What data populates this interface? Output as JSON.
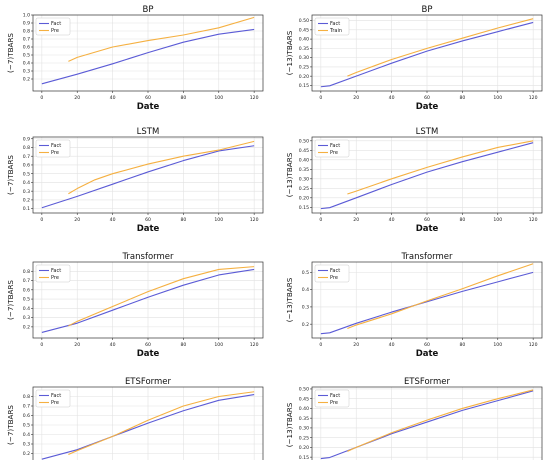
{
  "colors": {
    "fact": "#5b5bd6",
    "pre": "#f5b041",
    "grid": "#e2e2e2",
    "axis": "#333333"
  },
  "chart_data": [
    {
      "type": "line",
      "title": "BP",
      "xlabel": "Date",
      "ylabel": "(~7)TBARS",
      "xlim": [
        -5,
        125
      ],
      "ylim": [
        0.05,
        1.0
      ],
      "xticks": [
        0,
        20,
        40,
        60,
        80,
        100,
        120
      ],
      "yticks": [
        0.2,
        0.3,
        0.4,
        0.5,
        0.6,
        0.7,
        0.8,
        0.9,
        1.0
      ],
      "ytick_labels": [
        "0.2",
        "0.3",
        "0.4",
        "0.5",
        "0.6",
        "0.7",
        "0.8",
        "0.9",
        "1.0"
      ],
      "grid": true,
      "legend": "top-left",
      "series": [
        {
          "name": "Fact",
          "color_key": "fact",
          "x": [
            0,
            20,
            40,
            60,
            80,
            100,
            120
          ],
          "y": [
            0.14,
            0.26,
            0.39,
            0.53,
            0.66,
            0.76,
            0.82
          ]
        },
        {
          "name": "Pre",
          "color_key": "pre",
          "x": [
            15,
            20,
            40,
            60,
            80,
            100,
            120
          ],
          "y": [
            0.42,
            0.47,
            0.6,
            0.68,
            0.75,
            0.84,
            0.97
          ]
        }
      ]
    },
    {
      "type": "line",
      "title": "BP",
      "xlabel": "Date",
      "ylabel": "(~13)TBARS",
      "xlim": [
        -5,
        125
      ],
      "ylim": [
        0.12,
        0.53
      ],
      "xticks": [
        0,
        20,
        40,
        60,
        80,
        100,
        120
      ],
      "yticks": [
        0.15,
        0.2,
        0.25,
        0.3,
        0.35,
        0.4,
        0.45,
        0.5
      ],
      "ytick_labels": [
        "0.15",
        "0.20",
        "0.25",
        "0.30",
        "0.35",
        "0.40",
        "0.45",
        "0.50"
      ],
      "grid": true,
      "legend": "top-left",
      "series": [
        {
          "name": "Fact",
          "color_key": "fact",
          "x": [
            0,
            5,
            20,
            40,
            60,
            80,
            100,
            120
          ],
          "y": [
            0.143,
            0.148,
            0.2,
            0.27,
            0.335,
            0.39,
            0.44,
            0.49
          ]
        },
        {
          "name": "Train",
          "color_key": "pre",
          "x": [
            15,
            20,
            40,
            60,
            80,
            100,
            120
          ],
          "y": [
            0.2,
            0.22,
            0.29,
            0.35,
            0.405,
            0.46,
            0.51
          ]
        }
      ]
    },
    {
      "type": "line",
      "title": "LSTM",
      "xlabel": "Date",
      "ylabel": "(~7)TBARS",
      "xlim": [
        -5,
        125
      ],
      "ylim": [
        0.05,
        0.92
      ],
      "xticks": [
        0,
        20,
        40,
        60,
        80,
        100,
        120
      ],
      "yticks": [
        0.1,
        0.2,
        0.3,
        0.4,
        0.5,
        0.6,
        0.7,
        0.8,
        0.9
      ],
      "ytick_labels": [
        "0.1",
        "0.2",
        "0.3",
        "0.4",
        "0.5",
        "0.6",
        "0.7",
        "0.8",
        "0.9"
      ],
      "grid": true,
      "legend": "top-left",
      "series": [
        {
          "name": "Fact",
          "color_key": "fact",
          "x": [
            0,
            20,
            40,
            60,
            80,
            100,
            120
          ],
          "y": [
            0.11,
            0.24,
            0.38,
            0.52,
            0.65,
            0.76,
            0.82
          ]
        },
        {
          "name": "Pre",
          "color_key": "pre",
          "x": [
            15,
            20,
            30,
            40,
            60,
            80,
            100,
            120
          ],
          "y": [
            0.27,
            0.33,
            0.43,
            0.5,
            0.61,
            0.7,
            0.77,
            0.87
          ]
        }
      ]
    },
    {
      "type": "line",
      "title": "LSTM",
      "xlabel": "Date",
      "ylabel": "(~13)TBARS",
      "xlim": [
        -5,
        125
      ],
      "ylim": [
        0.12,
        0.52
      ],
      "xticks": [
        0,
        20,
        40,
        60,
        80,
        100,
        120
      ],
      "yticks": [
        0.15,
        0.2,
        0.25,
        0.3,
        0.35,
        0.4,
        0.45,
        0.5
      ],
      "ytick_labels": [
        "0.15",
        "0.20",
        "0.25",
        "0.30",
        "0.35",
        "0.40",
        "0.45",
        "0.50"
      ],
      "grid": true,
      "legend": "top-left",
      "series": [
        {
          "name": "Fact",
          "color_key": "fact",
          "x": [
            0,
            5,
            20,
            40,
            60,
            80,
            100,
            120
          ],
          "y": [
            0.143,
            0.148,
            0.2,
            0.27,
            0.335,
            0.39,
            0.44,
            0.49
          ]
        },
        {
          "name": "Pre",
          "color_key": "pre",
          "x": [
            15,
            20,
            40,
            60,
            80,
            100,
            120
          ],
          "y": [
            0.22,
            0.235,
            0.3,
            0.36,
            0.415,
            0.465,
            0.5
          ]
        }
      ]
    },
    {
      "type": "line",
      "title": "Transformer",
      "xlabel": "Date",
      "ylabel": "(~7)TBARS",
      "xlim": [
        -5,
        125
      ],
      "ylim": [
        0.08,
        0.9
      ],
      "xticks": [
        0,
        20,
        40,
        60,
        80,
        100,
        120
      ],
      "yticks": [
        0.2,
        0.3,
        0.4,
        0.5,
        0.6,
        0.7,
        0.8
      ],
      "ytick_labels": [
        "0.2",
        "0.3",
        "0.4",
        "0.5",
        "0.6",
        "0.7",
        "0.8"
      ],
      "grid": true,
      "legend": "top-left",
      "series": [
        {
          "name": "Fact",
          "color_key": "fact",
          "x": [
            0,
            20,
            40,
            60,
            80,
            100,
            120
          ],
          "y": [
            0.14,
            0.24,
            0.38,
            0.52,
            0.65,
            0.76,
            0.82
          ]
        },
        {
          "name": "Pre",
          "color_key": "pre",
          "x": [
            15,
            20,
            40,
            60,
            80,
            100,
            120
          ],
          "y": [
            0.21,
            0.26,
            0.42,
            0.58,
            0.72,
            0.82,
            0.85
          ]
        }
      ]
    },
    {
      "type": "line",
      "title": "Transformer",
      "xlabel": "Date",
      "ylabel": "(~13)TBARS",
      "xlim": [
        -5,
        125
      ],
      "ylim": [
        0.12,
        0.56
      ],
      "xticks": [
        0,
        20,
        40,
        60,
        80,
        100,
        120
      ],
      "yticks": [
        0.2,
        0.3,
        0.4,
        0.5
      ],
      "ytick_labels": [
        "0.2",
        "0.3",
        "0.4",
        "0.5"
      ],
      "grid": true,
      "legend": "top-left",
      "series": [
        {
          "name": "Fact",
          "color_key": "fact",
          "x": [
            0,
            5,
            20,
            40,
            60,
            80,
            100,
            120
          ],
          "y": [
            0.145,
            0.15,
            0.205,
            0.27,
            0.33,
            0.39,
            0.445,
            0.5
          ]
        },
        {
          "name": "Pre",
          "color_key": "pre",
          "x": [
            15,
            20,
            40,
            60,
            80,
            100,
            120
          ],
          "y": [
            0.175,
            0.195,
            0.26,
            0.335,
            0.405,
            0.48,
            0.55
          ]
        }
      ]
    },
    {
      "type": "line",
      "title": "ETSFormer",
      "xlabel": "Date",
      "ylabel": "(~7)TBARS",
      "xlim": [
        -5,
        125
      ],
      "ylim": [
        0.1,
        0.9
      ],
      "xticks": [
        0,
        20,
        40,
        60,
        80,
        100,
        120
      ],
      "yticks": [
        0.2,
        0.3,
        0.4,
        0.5,
        0.6,
        0.7,
        0.8
      ],
      "ytick_labels": [
        "0.2",
        "0.3",
        "0.4",
        "0.5",
        "0.6",
        "0.7",
        "0.8"
      ],
      "grid": true,
      "legend": "top-left",
      "series": [
        {
          "name": "Fact",
          "color_key": "fact",
          "x": [
            0,
            20,
            40,
            60,
            80,
            100,
            120
          ],
          "y": [
            0.14,
            0.24,
            0.38,
            0.52,
            0.65,
            0.76,
            0.82
          ]
        },
        {
          "name": "Pre",
          "color_key": "pre",
          "x": [
            15,
            20,
            40,
            60,
            80,
            100,
            120
          ],
          "y": [
            0.19,
            0.23,
            0.38,
            0.55,
            0.7,
            0.8,
            0.85
          ]
        }
      ]
    },
    {
      "type": "line",
      "title": "ETSFormer",
      "xlabel": "Date",
      "ylabel": "(~13)TBARS",
      "xlim": [
        -5,
        125
      ],
      "ylim": [
        0.12,
        0.51
      ],
      "xticks": [
        0,
        20,
        40,
        60,
        80,
        100,
        120
      ],
      "yticks": [
        0.15,
        0.2,
        0.25,
        0.3,
        0.35,
        0.4,
        0.45,
        0.5
      ],
      "ytick_labels": [
        "0.15",
        "0.20",
        "0.25",
        "0.30",
        "0.35",
        "0.40",
        "0.45",
        "0.50"
      ],
      "grid": true,
      "legend": "top-left",
      "series": [
        {
          "name": "Fact",
          "color_key": "fact",
          "x": [
            0,
            5,
            20,
            40,
            60,
            80,
            100,
            120
          ],
          "y": [
            0.143,
            0.148,
            0.2,
            0.27,
            0.33,
            0.39,
            0.44,
            0.49
          ]
        },
        {
          "name": "Pre",
          "color_key": "pre",
          "x": [
            15,
            20,
            40,
            60,
            80,
            100,
            120
          ],
          "y": [
            0.18,
            0.2,
            0.275,
            0.34,
            0.4,
            0.45,
            0.495
          ]
        }
      ]
    }
  ]
}
